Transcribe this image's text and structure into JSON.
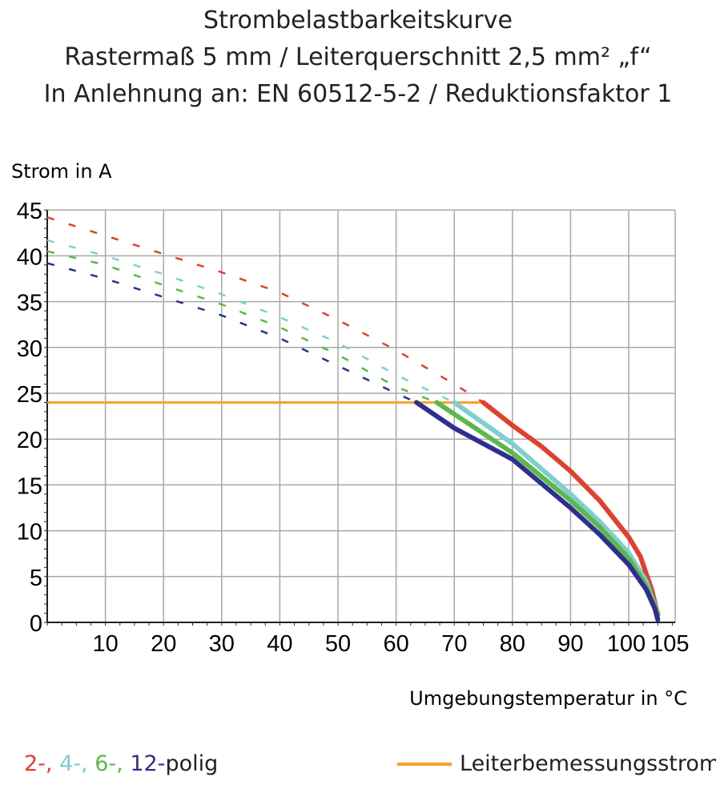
{
  "chart_data": {
    "type": "line",
    "title": "Strombelastbarkeitskurve",
    "subtitle": "Rastermaß 5 mm / Leiterquerschnitt 2,5 mm² „f“",
    "subtitle2": "In Anlehnung an: EN 60512-5-2 / Reduktionsfaktor 1",
    "ylabel": "Strom in A",
    "xlabel": "Umgebungstemperatur in °C",
    "xlim": [
      0,
      108
    ],
    "ylim": [
      0,
      45
    ],
    "grid": true,
    "xticks": [
      10,
      20,
      30,
      40,
      50,
      60,
      70,
      80,
      90,
      100,
      105
    ],
    "yticks": [
      0,
      5,
      10,
      15,
      20,
      25,
      30,
      35,
      40,
      45
    ],
    "series": [
      {
        "name": "2-,",
        "color": "#e0402e",
        "dashed": [
          [
            0,
            44.2
          ],
          [
            10,
            42.2
          ],
          [
            20,
            40.2
          ],
          [
            30,
            38.2
          ],
          [
            40,
            36
          ],
          [
            50,
            33
          ],
          [
            60,
            29.7
          ],
          [
            70,
            26
          ],
          [
            75,
            24
          ]
        ],
        "solid": [
          [
            75,
            24
          ],
          [
            80,
            21.5
          ],
          [
            85,
            19.2
          ],
          [
            90,
            16.5
          ],
          [
            95,
            13.3
          ],
          [
            100,
            9.3
          ],
          [
            102,
            7.2
          ],
          [
            104,
            3.5
          ],
          [
            105,
            0.8
          ]
        ]
      },
      {
        "name": "4-,",
        "color": "#7fcfcf",
        "dashed": [
          [
            0,
            41.7
          ],
          [
            10,
            40
          ],
          [
            20,
            38
          ],
          [
            30,
            35.8
          ],
          [
            40,
            33.3
          ],
          [
            50,
            30.5
          ],
          [
            60,
            27
          ],
          [
            70,
            24
          ]
        ],
        "solid": [
          [
            70,
            24
          ],
          [
            80,
            19.5
          ],
          [
            90,
            14
          ],
          [
            95,
            11
          ],
          [
            100,
            7.6
          ],
          [
            103,
            4.5
          ],
          [
            105,
            1
          ]
        ]
      },
      {
        "name": "6-,",
        "color": "#5cb848",
        "dashed": [
          [
            0,
            40.5
          ],
          [
            10,
            39
          ],
          [
            20,
            36.8
          ],
          [
            30,
            34.7
          ],
          [
            40,
            32.2
          ],
          [
            50,
            29.2
          ],
          [
            60,
            25.7
          ],
          [
            67,
            24
          ]
        ],
        "solid": [
          [
            67,
            24
          ],
          [
            80,
            18.5
          ],
          [
            90,
            13.3
          ],
          [
            95,
            10.4
          ],
          [
            100,
            7
          ],
          [
            103,
            4
          ],
          [
            105,
            1
          ]
        ]
      },
      {
        "name": "12-",
        "color": "#2f2f8f",
        "dashed": [
          [
            0,
            39.2
          ],
          [
            10,
            37.5
          ],
          [
            20,
            35.5
          ],
          [
            30,
            33.5
          ],
          [
            40,
            31
          ],
          [
            50,
            28
          ],
          [
            60,
            25
          ],
          [
            63.5,
            24
          ]
        ],
        "solid": [
          [
            63.5,
            24
          ],
          [
            70,
            21.2
          ],
          [
            80,
            17.8
          ],
          [
            90,
            12.5
          ],
          [
            95,
            9.6
          ],
          [
            100,
            6.3
          ],
          [
            103,
            3.6
          ],
          [
            104.5,
            1.5
          ],
          [
            105,
            0.3
          ]
        ]
      }
    ],
    "rated_current": {
      "name": "Leiterbemessungsstrom",
      "color": "#f5a32b",
      "value": 24,
      "x": [
        0,
        75
      ]
    }
  },
  "legend": {
    "suffix": "polig"
  }
}
